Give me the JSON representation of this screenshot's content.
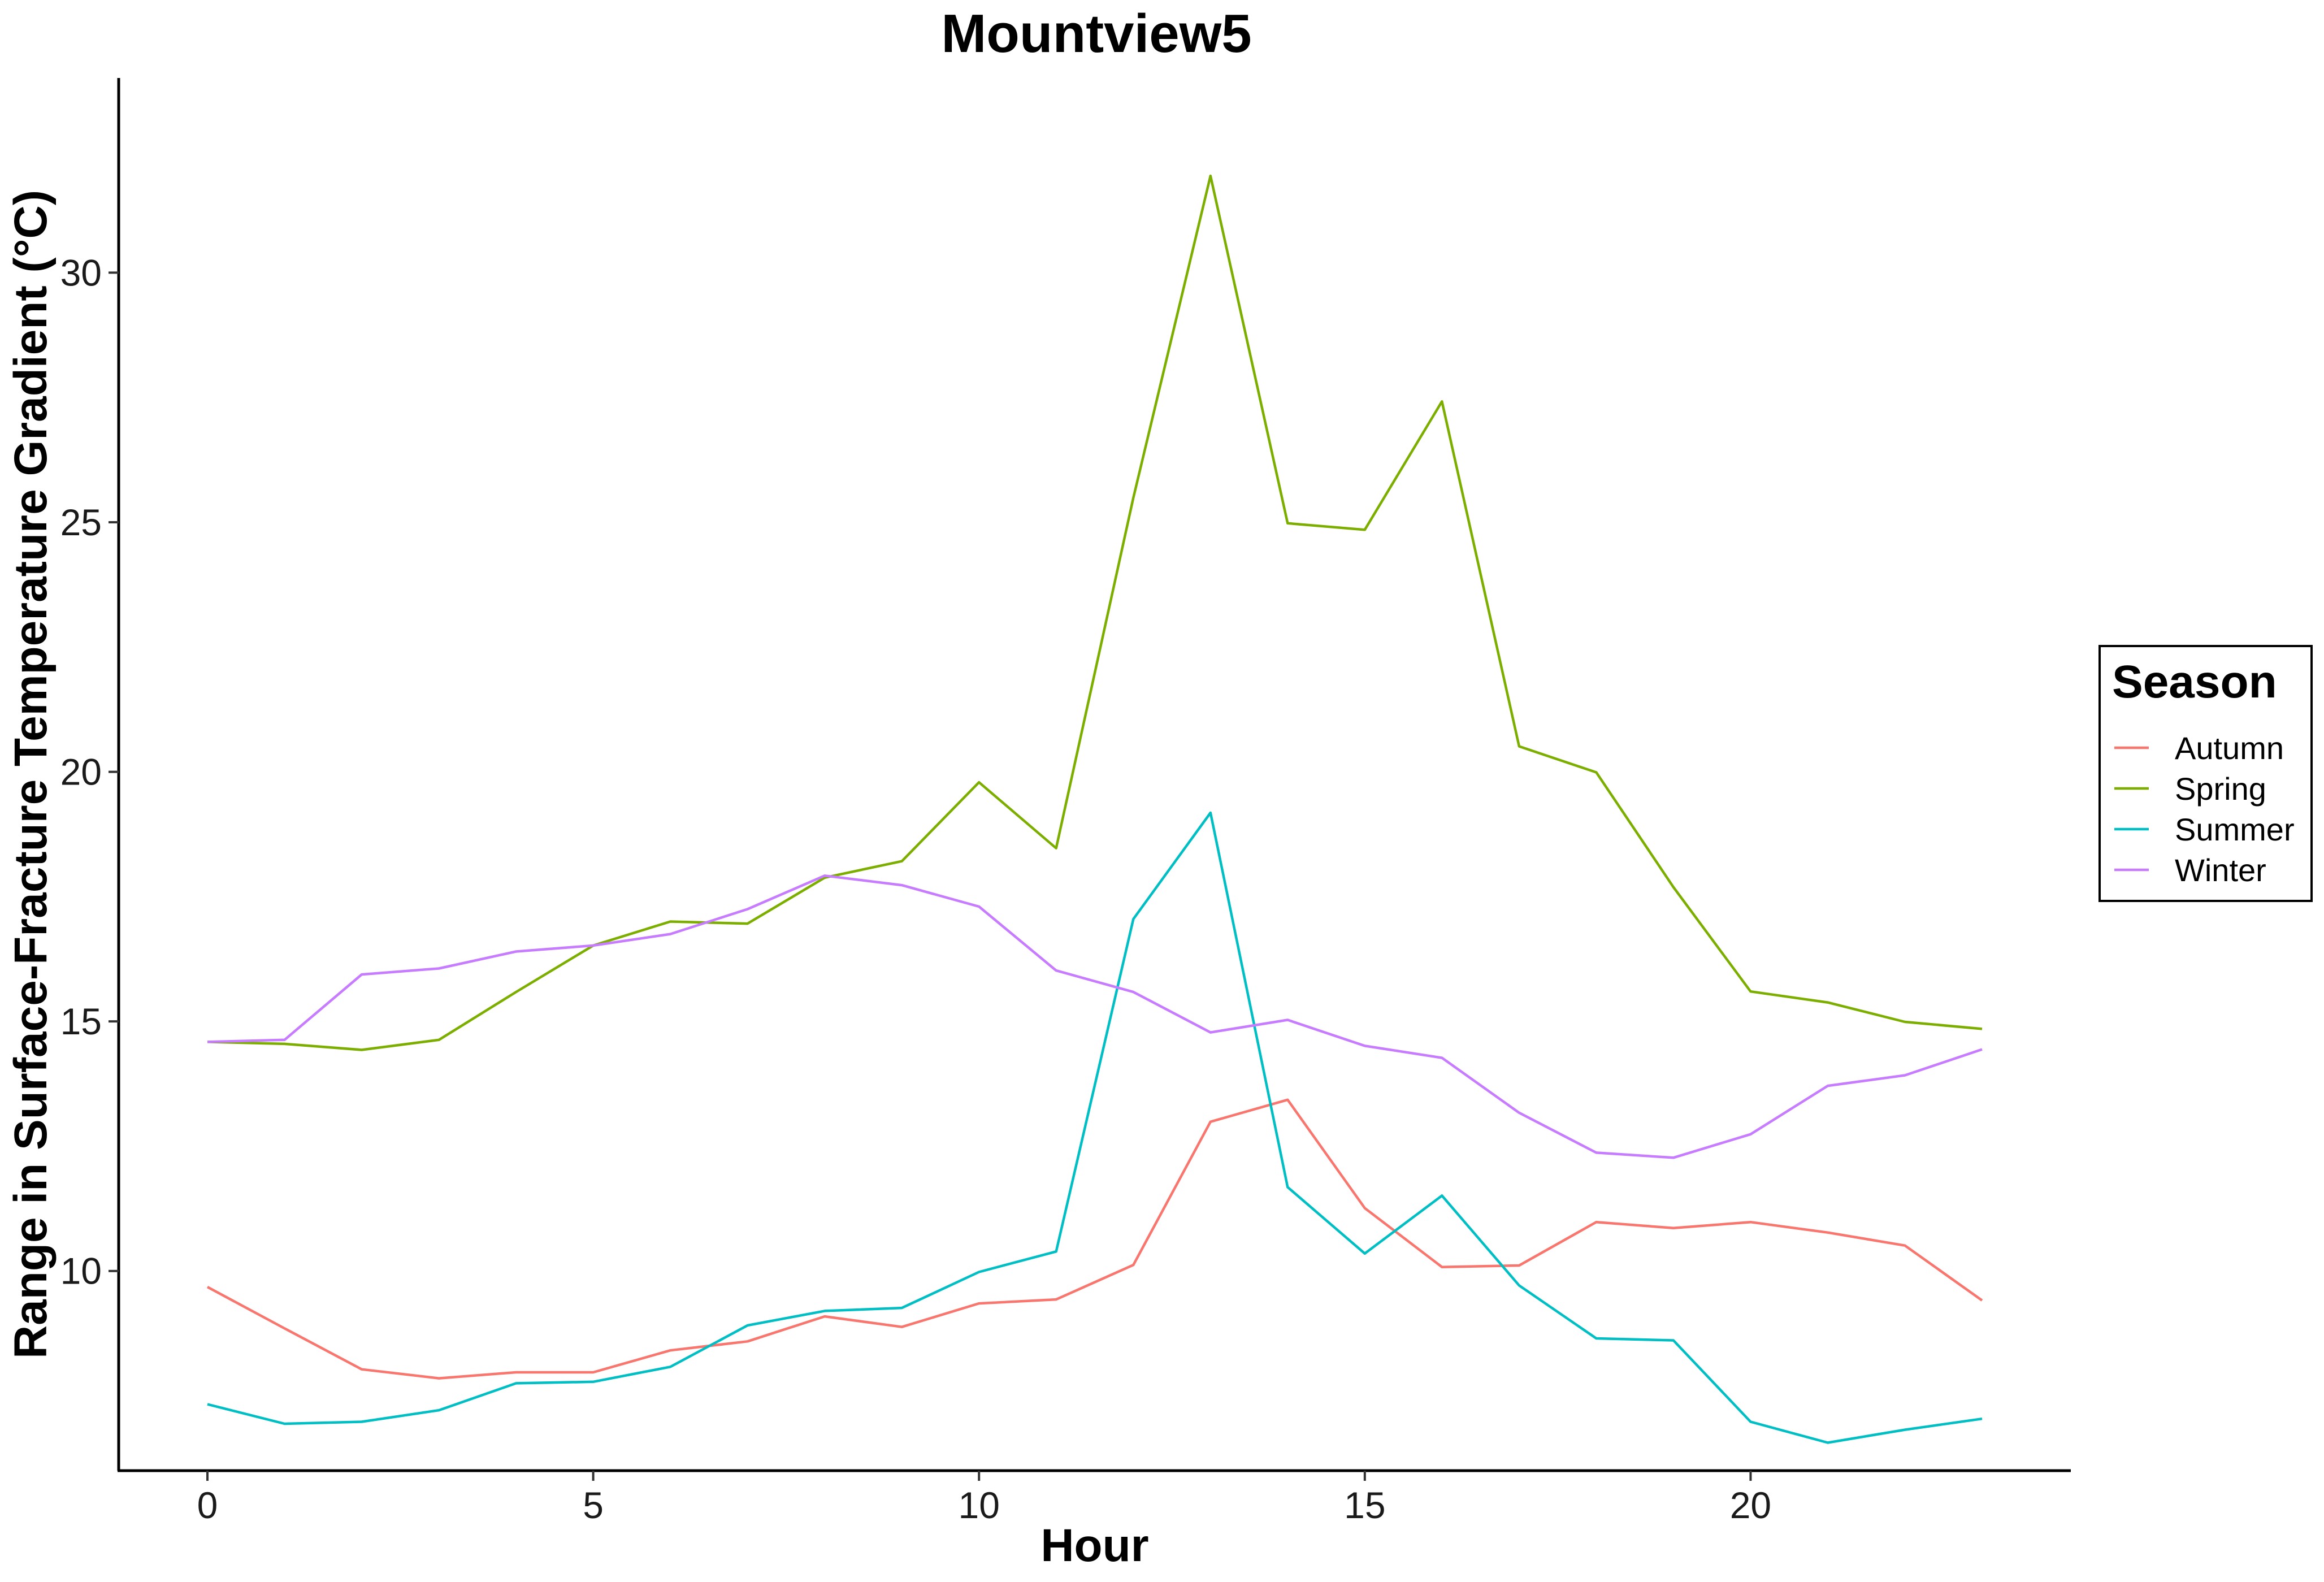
{
  "chart_data": {
    "type": "line",
    "title": "Mountview5",
    "xlabel": "Hour",
    "ylabel": "Range in Surface-Fracture Temperature Gradient (°C)",
    "xlim": [
      -1.15,
      24.15
    ],
    "ylim": [
      6.0,
      33.9
    ],
    "xticks": [
      0,
      5,
      10,
      15,
      20
    ],
    "yticks": [
      10,
      15,
      20,
      25,
      30
    ],
    "x": [
      0,
      1,
      2,
      3,
      4,
      5,
      6,
      7,
      8,
      9,
      10,
      11,
      12,
      13,
      14,
      15,
      16,
      17,
      18,
      19,
      20,
      21,
      22,
      23
    ],
    "grid": false,
    "legend": {
      "title": "Season",
      "position": "right"
    },
    "series": [
      {
        "name": "Autumn",
        "color": "#F8766D",
        "values": [
          9.68,
          8.85,
          8.03,
          7.85,
          7.97,
          7.97,
          8.41,
          8.59,
          9.09,
          8.88,
          9.35,
          9.43,
          10.12,
          12.99,
          13.43,
          11.26,
          10.08,
          10.11,
          10.98,
          10.86,
          10.98,
          10.77,
          10.51,
          9.41
        ]
      },
      {
        "name": "Spring",
        "color": "#7CAE00",
        "values": [
          14.59,
          14.55,
          14.43,
          14.63,
          15.59,
          16.52,
          17.0,
          16.96,
          17.88,
          18.21,
          19.79,
          18.47,
          25.49,
          31.94,
          24.98,
          24.85,
          27.42,
          20.51,
          19.99,
          17.69,
          15.6,
          15.38,
          14.99,
          14.85
        ]
      },
      {
        "name": "Summer",
        "color": "#00BFC4",
        "values": [
          7.33,
          6.94,
          6.98,
          7.21,
          7.75,
          7.78,
          8.08,
          8.91,
          9.2,
          9.26,
          9.98,
          10.39,
          17.05,
          19.18,
          11.68,
          10.35,
          11.51,
          9.71,
          8.65,
          8.61,
          6.98,
          6.56,
          6.82,
          7.04
        ]
      },
      {
        "name": "Winter",
        "color": "#C77CFF",
        "values": [
          14.59,
          14.63,
          15.94,
          16.06,
          16.4,
          16.52,
          16.75,
          17.25,
          17.92,
          17.73,
          17.3,
          16.02,
          15.59,
          14.78,
          15.03,
          14.51,
          14.27,
          13.17,
          12.37,
          12.27,
          12.74,
          13.71,
          13.92,
          14.44
        ]
      }
    ]
  }
}
